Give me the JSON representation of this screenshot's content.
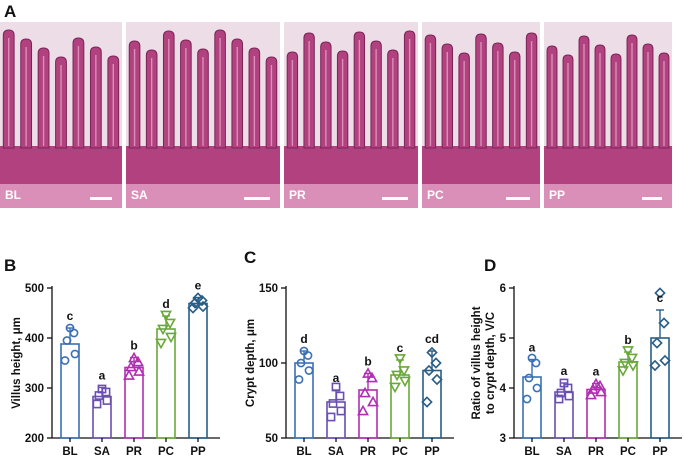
{
  "panels": {
    "a": "A",
    "b": "B",
    "c": "C",
    "d": "D"
  },
  "micrographs": [
    {
      "label": "BL"
    },
    {
      "label": "SA"
    },
    {
      "label": "PR"
    },
    {
      "label": "PC"
    },
    {
      "label": "PP"
    }
  ],
  "colors": {
    "BL": "#3b6fb6",
    "SA": "#6a4fb0",
    "PR": "#b02fb0",
    "PC": "#6aa83a",
    "PP": "#2a5e86",
    "tissue": "#b2427f",
    "tissue_light": "#d98fb7",
    "background": "#ecdde6"
  },
  "chart_data": [
    {
      "type": "bar",
      "categories": [
        "BL",
        "SA",
        "PR",
        "PC",
        "PP"
      ],
      "ylabel": "Villus height, μm",
      "ylim": [
        200,
        500
      ],
      "yticks": [
        200,
        300,
        400,
        500
      ],
      "values": [
        388,
        283,
        341,
        418,
        469
      ],
      "errors": [
        32,
        18,
        20,
        26,
        12
      ],
      "letters": [
        "c",
        "a",
        "b",
        "d",
        "e"
      ],
      "points": [
        [
          355,
          368,
          395,
          410,
          420
        ],
        [
          268,
          275,
          285,
          292,
          298
        ],
        [
          325,
          333,
          342,
          352,
          360
        ],
        [
          390,
          402,
          418,
          430,
          446
        ],
        [
          460,
          463,
          470,
          475,
          480
        ]
      ],
      "markers": [
        "circle",
        "square",
        "triangle-up",
        "triangle-down",
        "diamond"
      ]
    },
    {
      "type": "bar",
      "categories": [
        "BL",
        "SA",
        "PR",
        "PC",
        "PP"
      ],
      "ylabel": "Crypt depth, μm",
      "ylim": [
        50,
        150
      ],
      "yticks": [
        50,
        100,
        150
      ],
      "values": [
        100,
        74,
        82,
        92,
        95
      ],
      "errors": [
        8,
        8,
        11,
        10,
        13
      ],
      "letters": [
        "d",
        "a",
        "b",
        "c",
        "cd"
      ],
      "points": [
        [
          89,
          95,
          100,
          105,
          108
        ],
        [
          64,
          68,
          73,
          78,
          84
        ],
        [
          68,
          74,
          80,
          90,
          93
        ],
        [
          84,
          88,
          92,
          95,
          103
        ],
        [
          74,
          89,
          95,
          100,
          107
        ]
      ],
      "markers": [
        "circle",
        "square",
        "triangle-up",
        "triangle-down",
        "diamond"
      ]
    },
    {
      "type": "bar",
      "categories": [
        "BL",
        "SA",
        "PR",
        "PC",
        "PP"
      ],
      "ylabel": "Ratio of villus height to crypt depth, V/C",
      "ylim": [
        3,
        6
      ],
      "yticks": [
        3,
        4,
        5,
        6
      ],
      "values": [
        4.22,
        3.92,
        3.97,
        4.52,
        5.0
      ],
      "errors": [
        0.35,
        0.18,
        0.12,
        0.2,
        0.56
      ],
      "letters": [
        "a",
        "a",
        "a",
        "b",
        "c"
      ],
      "points": [
        [
          3.78,
          4.0,
          4.2,
          4.5,
          4.6
        ],
        [
          3.78,
          3.84,
          3.9,
          4.0,
          4.1
        ],
        [
          3.86,
          3.92,
          3.97,
          4.04,
          4.08
        ],
        [
          4.35,
          4.45,
          4.5,
          4.6,
          4.75
        ],
        [
          4.45,
          4.55,
          4.9,
          5.3,
          5.9
        ]
      ],
      "markers": [
        "circle",
        "square",
        "triangle-up",
        "triangle-down",
        "diamond"
      ]
    }
  ]
}
